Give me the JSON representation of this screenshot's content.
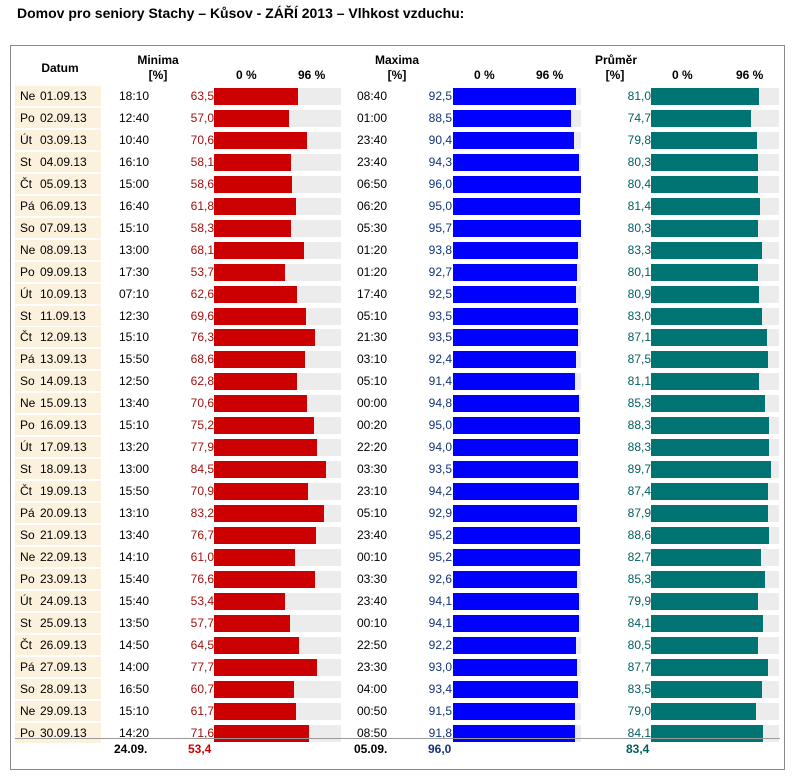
{
  "title": "Domov pro seniory Stachy – Kůsov - ZÁŘÍ 2013 – Vlhkost vzduchu:",
  "headers": {
    "date": "Datum",
    "min": "Minima",
    "max": "Maxima",
    "avg": "Průměr",
    "unit": "[%]",
    "scale_start": "0 %",
    "scale_end": "96 %"
  },
  "colors": {
    "min": "#cc0000",
    "max": "#0000ff",
    "avg": "#007373",
    "date_bg": "#fbf1dc",
    "bar_bg": "#ececec"
  },
  "chart_data": {
    "type": "bar",
    "bar_scale_max": 96,
    "columns": [
      "Datum",
      "Minima čas",
      "Minima [%]",
      "Maxima čas",
      "Maxima [%]",
      "Průměr [%]"
    ],
    "rows": [
      {
        "day": "Ne",
        "date": "01.09.13",
        "min_time": "18:10",
        "min": "63,5",
        "max_time": "08:40",
        "max": "92,5",
        "avg": "81,0"
      },
      {
        "day": "Po",
        "date": "02.09.13",
        "min_time": "12:40",
        "min": "57,0",
        "max_time": "01:00",
        "max": "88,5",
        "avg": "74,7"
      },
      {
        "day": "Út",
        "date": "03.09.13",
        "min_time": "10:40",
        "min": "70,6",
        "max_time": "23:40",
        "max": "90,4",
        "avg": "79,8"
      },
      {
        "day": "St",
        "date": "04.09.13",
        "min_time": "16:10",
        "min": "58,1",
        "max_time": "23:40",
        "max": "94,3",
        "avg": "80,3"
      },
      {
        "day": "Čt",
        "date": "05.09.13",
        "min_time": "15:00",
        "min": "58,6",
        "max_time": "06:50",
        "max": "96,0",
        "avg": "80,4"
      },
      {
        "day": "Pá",
        "date": "06.09.13",
        "min_time": "16:40",
        "min": "61,8",
        "max_time": "06:20",
        "max": "95,0",
        "avg": "81,4"
      },
      {
        "day": "So",
        "date": "07.09.13",
        "min_time": "15:10",
        "min": "58,3",
        "max_time": "05:30",
        "max": "95,7",
        "avg": "80,3"
      },
      {
        "day": "Ne",
        "date": "08.09.13",
        "min_time": "13:00",
        "min": "68,1",
        "max_time": "01:20",
        "max": "93,8",
        "avg": "83,3"
      },
      {
        "day": "Po",
        "date": "09.09.13",
        "min_time": "17:30",
        "min": "53,7",
        "max_time": "01:20",
        "max": "92,7",
        "avg": "80,1"
      },
      {
        "day": "Út",
        "date": "10.09.13",
        "min_time": "07:10",
        "min": "62,6",
        "max_time": "17:40",
        "max": "92,5",
        "avg": "80,9"
      },
      {
        "day": "St",
        "date": "11.09.13",
        "min_time": "12:30",
        "min": "69,6",
        "max_time": "05:10",
        "max": "93,5",
        "avg": "83,0"
      },
      {
        "day": "Čt",
        "date": "12.09.13",
        "min_time": "15:10",
        "min": "76,3",
        "max_time": "21:30",
        "max": "93,5",
        "avg": "87,1"
      },
      {
        "day": "Pá",
        "date": "13.09.13",
        "min_time": "15:50",
        "min": "68,6",
        "max_time": "03:10",
        "max": "92,4",
        "avg": "87,5"
      },
      {
        "day": "So",
        "date": "14.09.13",
        "min_time": "12:50",
        "min": "62,8",
        "max_time": "05:10",
        "max": "91,4",
        "avg": "81,1"
      },
      {
        "day": "Ne",
        "date": "15.09.13",
        "min_time": "13:40",
        "min": "70,6",
        "max_time": "00:00",
        "max": "94,8",
        "avg": "85,3"
      },
      {
        "day": "Po",
        "date": "16.09.13",
        "min_time": "15:10",
        "min": "75,2",
        "max_time": "00:20",
        "max": "95,0",
        "avg": "88,3"
      },
      {
        "day": "Út",
        "date": "17.09.13",
        "min_time": "13:20",
        "min": "77,9",
        "max_time": "22:20",
        "max": "94,0",
        "avg": "88,3"
      },
      {
        "day": "St",
        "date": "18.09.13",
        "min_time": "13:00",
        "min": "84,5",
        "max_time": "03:30",
        "max": "93,5",
        "avg": "89,7"
      },
      {
        "day": "Čt",
        "date": "19.09.13",
        "min_time": "15:50",
        "min": "70,9",
        "max_time": "23:10",
        "max": "94,2",
        "avg": "87,4"
      },
      {
        "day": "Pá",
        "date": "20.09.13",
        "min_time": "13:10",
        "min": "83,2",
        "max_time": "05:10",
        "max": "92,9",
        "avg": "87,9"
      },
      {
        "day": "So",
        "date": "21.09.13",
        "min_time": "13:40",
        "min": "76,7",
        "max_time": "23:40",
        "max": "95,2",
        "avg": "88,6"
      },
      {
        "day": "Ne",
        "date": "22.09.13",
        "min_time": "14:10",
        "min": "61,0",
        "max_time": "00:10",
        "max": "95,2",
        "avg": "82,7"
      },
      {
        "day": "Po",
        "date": "23.09.13",
        "min_time": "15:40",
        "min": "76,6",
        "max_time": "03:30",
        "max": "92,6",
        "avg": "85,3"
      },
      {
        "day": "Út",
        "date": "24.09.13",
        "min_time": "15:40",
        "min": "53,4",
        "max_time": "23:40",
        "max": "94,1",
        "avg": "79,9"
      },
      {
        "day": "St",
        "date": "25.09.13",
        "min_time": "13:50",
        "min": "57,7",
        "max_time": "00:10",
        "max": "94,1",
        "avg": "84,1"
      },
      {
        "day": "Čt",
        "date": "26.09.13",
        "min_time": "14:50",
        "min": "64,5",
        "max_time": "22:50",
        "max": "92,2",
        "avg": "80,5"
      },
      {
        "day": "Pá",
        "date": "27.09.13",
        "min_time": "14:00",
        "min": "77,7",
        "max_time": "23:30",
        "max": "93,0",
        "avg": "87,7"
      },
      {
        "day": "So",
        "date": "28.09.13",
        "min_time": "16:50",
        "min": "60,7",
        "max_time": "04:00",
        "max": "93,4",
        "avg": "83,5"
      },
      {
        "day": "Ne",
        "date": "29.09.13",
        "min_time": "15:10",
        "min": "61,7",
        "max_time": "00:50",
        "max": "91,5",
        "avg": "79,0"
      },
      {
        "day": "Po",
        "date": "30.09.13",
        "min_time": "14:20",
        "min": "71,6",
        "max_time": "08:50",
        "max": "91,8",
        "avg": "84,1"
      }
    ],
    "summary": {
      "min_date": "24.09.",
      "min_value": "53,4",
      "max_date": "05.09.",
      "max_value": "96,0",
      "avg_value": "83,4"
    }
  }
}
